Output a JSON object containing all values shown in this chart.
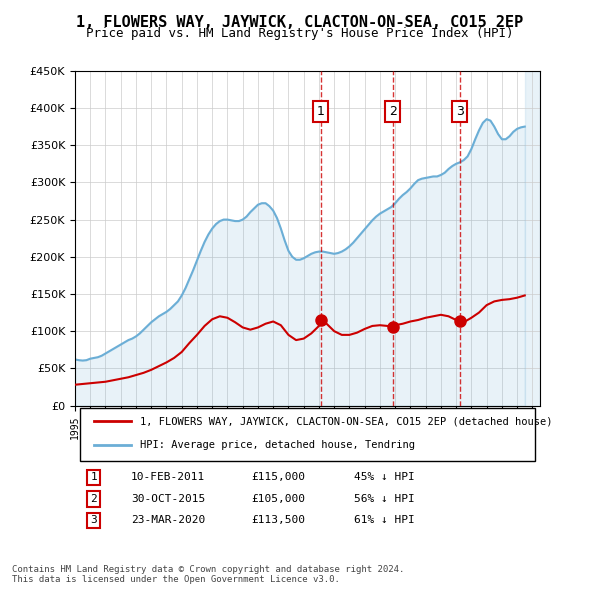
{
  "title": "1, FLOWERS WAY, JAYWICK, CLACTON-ON-SEA, CO15 2EP",
  "subtitle": "Price paid vs. HM Land Registry's House Price Index (HPI)",
  "legend_line1": "1, FLOWERS WAY, JAYWICK, CLACTON-ON-SEA, CO15 2EP (detached house)",
  "legend_line2": "HPI: Average price, detached house, Tendring",
  "footnote1": "Contains HM Land Registry data © Crown copyright and database right 2024.",
  "footnote2": "This data is licensed under the Open Government Licence v3.0.",
  "sales": [
    {
      "num": 1,
      "date": "10-FEB-2011",
      "price": "£115,000",
      "pct": "45% ↓ HPI",
      "year": 2011.12
    },
    {
      "num": 2,
      "date": "30-OCT-2015",
      "price": "£105,000",
      "pct": "56% ↓ HPI",
      "year": 2015.83
    },
    {
      "num": 3,
      "date": "23-MAR-2020",
      "price": "£113,500",
      "pct": "61% ↓ HPI",
      "year": 2020.23
    }
  ],
  "sale_prices": [
    115000,
    105000,
    113500
  ],
  "hpi_color": "#6baed6",
  "price_color": "#cc0000",
  "sale_marker_color": "#cc0000",
  "ylim": [
    0,
    450000
  ],
  "xlim_start": 1995,
  "xlim_end": 2025.5,
  "hpi_data": {
    "years": [
      1995.0,
      1995.25,
      1995.5,
      1995.75,
      1996.0,
      1996.25,
      1996.5,
      1996.75,
      1997.0,
      1997.25,
      1997.5,
      1997.75,
      1998.0,
      1998.25,
      1998.5,
      1998.75,
      1999.0,
      1999.25,
      1999.5,
      1999.75,
      2000.0,
      2000.25,
      2000.5,
      2000.75,
      2001.0,
      2001.25,
      2001.5,
      2001.75,
      2002.0,
      2002.25,
      2002.5,
      2002.75,
      2003.0,
      2003.25,
      2003.5,
      2003.75,
      2004.0,
      2004.25,
      2004.5,
      2004.75,
      2005.0,
      2005.25,
      2005.5,
      2005.75,
      2006.0,
      2006.25,
      2006.5,
      2006.75,
      2007.0,
      2007.25,
      2007.5,
      2007.75,
      2008.0,
      2008.25,
      2008.5,
      2008.75,
      2009.0,
      2009.25,
      2009.5,
      2009.75,
      2010.0,
      2010.25,
      2010.5,
      2010.75,
      2011.0,
      2011.25,
      2011.5,
      2011.75,
      2012.0,
      2012.25,
      2012.5,
      2012.75,
      2013.0,
      2013.25,
      2013.5,
      2013.75,
      2014.0,
      2014.25,
      2014.5,
      2014.75,
      2015.0,
      2015.25,
      2015.5,
      2015.75,
      2016.0,
      2016.25,
      2016.5,
      2016.75,
      2017.0,
      2017.25,
      2017.5,
      2017.75,
      2018.0,
      2018.25,
      2018.5,
      2018.75,
      2019.0,
      2019.25,
      2019.5,
      2019.75,
      2020.0,
      2020.25,
      2020.5,
      2020.75,
      2021.0,
      2021.25,
      2021.5,
      2021.75,
      2022.0,
      2022.25,
      2022.5,
      2022.75,
      2023.0,
      2023.25,
      2023.5,
      2023.75,
      2024.0,
      2024.25,
      2024.5
    ],
    "values": [
      62000,
      61000,
      60500,
      61000,
      63000,
      64000,
      65000,
      67000,
      70000,
      73000,
      76000,
      79000,
      82000,
      85000,
      88000,
      90000,
      93000,
      97000,
      102000,
      107000,
      112000,
      116000,
      120000,
      123000,
      126000,
      130000,
      135000,
      140000,
      148000,
      158000,
      170000,
      182000,
      195000,
      208000,
      220000,
      230000,
      238000,
      244000,
      248000,
      250000,
      250000,
      249000,
      248000,
      248000,
      250000,
      254000,
      260000,
      265000,
      270000,
      272000,
      272000,
      268000,
      262000,
      252000,
      238000,
      222000,
      208000,
      200000,
      196000,
      196000,
      198000,
      201000,
      204000,
      206000,
      207000,
      207000,
      206000,
      205000,
      204000,
      205000,
      207000,
      210000,
      214000,
      219000,
      225000,
      231000,
      237000,
      243000,
      249000,
      254000,
      258000,
      261000,
      264000,
      267000,
      272000,
      278000,
      283000,
      287000,
      292000,
      298000,
      303000,
      305000,
      306000,
      307000,
      308000,
      308000,
      310000,
      313000,
      318000,
      322000,
      325000,
      327000,
      330000,
      335000,
      345000,
      358000,
      370000,
      380000,
      385000,
      383000,
      375000,
      365000,
      358000,
      358000,
      362000,
      368000,
      372000,
      374000,
      375000
    ]
  },
  "price_data": {
    "years": [
      1995.0,
      1995.5,
      1996.0,
      1996.5,
      1997.0,
      1997.5,
      1998.0,
      1998.5,
      1999.0,
      1999.5,
      2000.0,
      2000.5,
      2001.0,
      2001.5,
      2002.0,
      2002.5,
      2003.0,
      2003.5,
      2004.0,
      2004.5,
      2005.0,
      2005.5,
      2006.0,
      2006.5,
      2007.0,
      2007.5,
      2008.0,
      2008.5,
      2009.0,
      2009.5,
      2010.0,
      2010.5,
      2011.0,
      2011.12,
      2011.5,
      2012.0,
      2012.5,
      2013.0,
      2013.5,
      2014.0,
      2014.5,
      2015.0,
      2015.5,
      2015.83,
      2016.0,
      2016.5,
      2017.0,
      2017.5,
      2018.0,
      2018.5,
      2019.0,
      2019.5,
      2020.0,
      2020.23,
      2020.5,
      2021.0,
      2021.5,
      2022.0,
      2022.5,
      2023.0,
      2023.5,
      2024.0,
      2024.5
    ],
    "values": [
      28000,
      29000,
      30000,
      31000,
      32000,
      34000,
      36000,
      38000,
      41000,
      44000,
      48000,
      53000,
      58000,
      64000,
      72000,
      84000,
      95000,
      107000,
      116000,
      120000,
      118000,
      112000,
      105000,
      102000,
      105000,
      110000,
      113000,
      108000,
      95000,
      88000,
      90000,
      97000,
      107000,
      115000,
      110000,
      100000,
      95000,
      95000,
      98000,
      103000,
      107000,
      108000,
      107000,
      105000,
      108000,
      110000,
      113000,
      115000,
      118000,
      120000,
      122000,
      120000,
      115000,
      113500,
      112000,
      118000,
      125000,
      135000,
      140000,
      142000,
      143000,
      145000,
      148000
    ]
  }
}
